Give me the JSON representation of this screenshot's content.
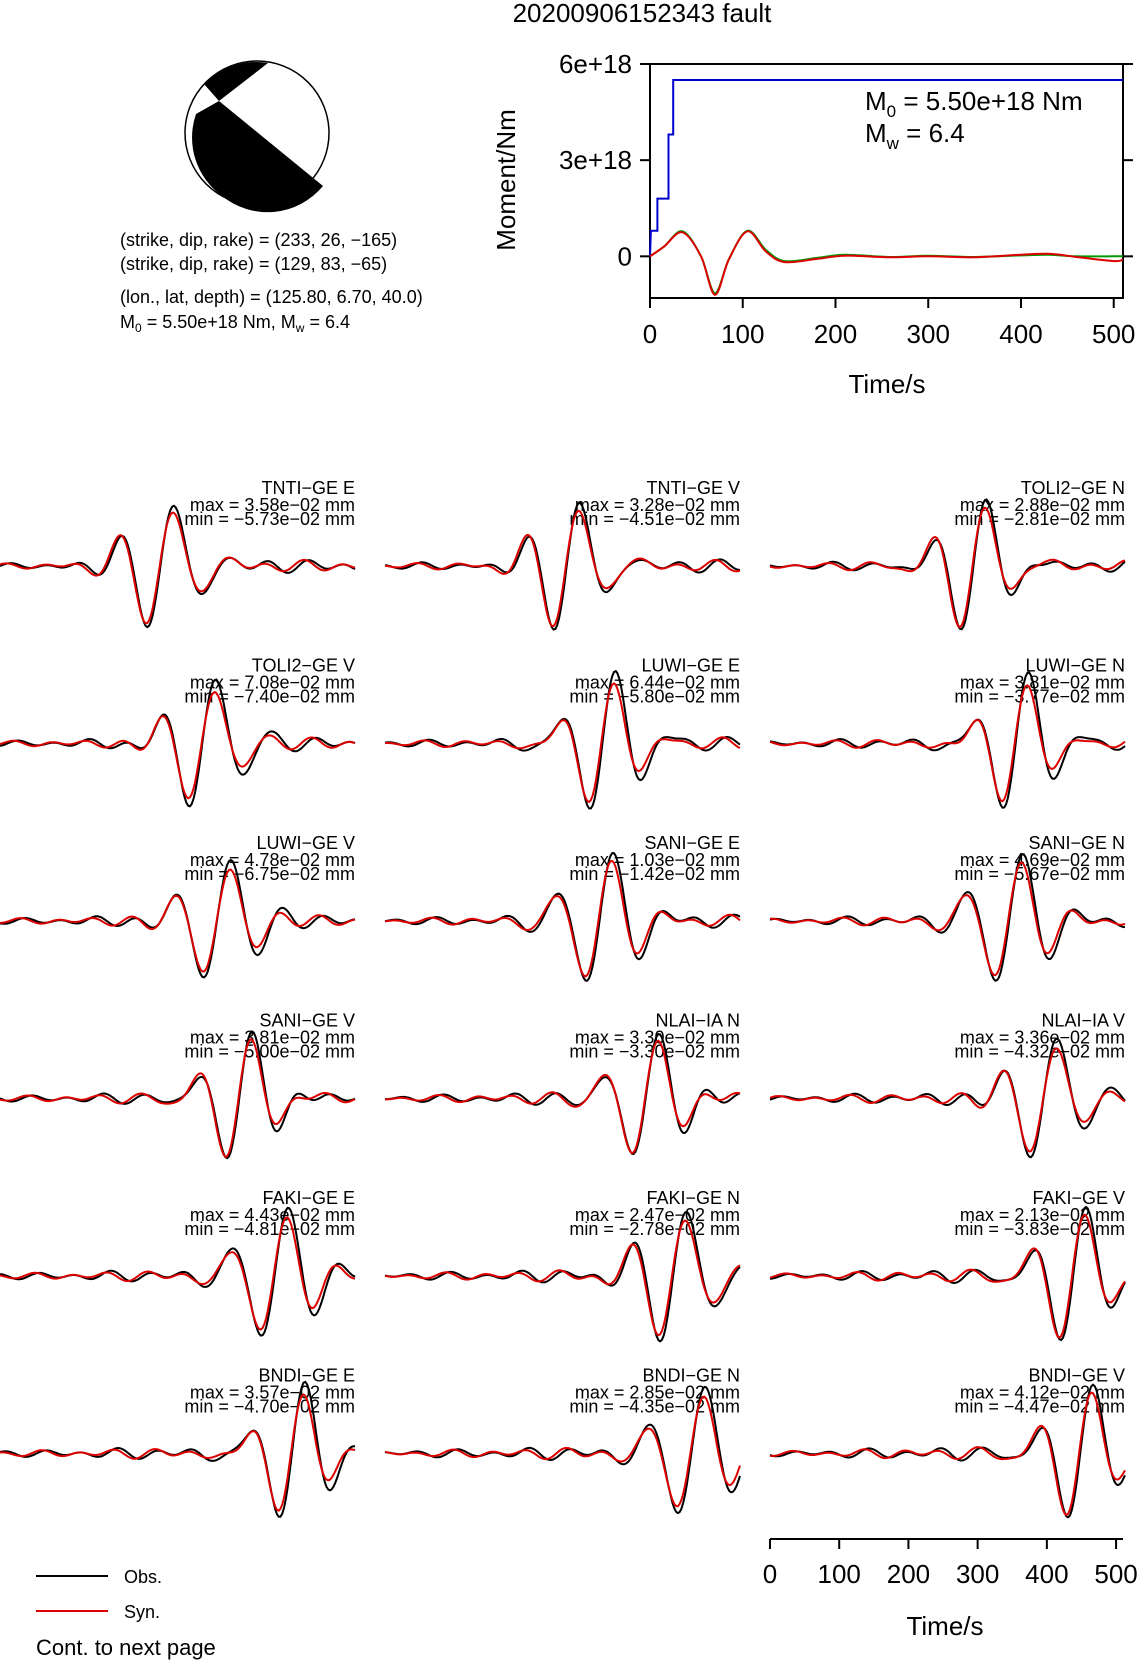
{
  "title": "20200906152343 fault",
  "mechanism": {
    "lines": [
      "(strike, dip, rake) = (233, 26, −165)",
      "(strike, dip, rake) = (129, 83, −65)",
      "(lon., lat, depth) = (125.80, 6.70, 40.0)"
    ],
    "m0_line_prefix": "M",
    "m0_line_sub": "0",
    "m0_line_middle": " = 5.50e+18 Nm, M",
    "m0_line_sub2": "w",
    "m0_line_suffix": " = 6.4"
  },
  "moment_panel": {
    "ylabel": "Moment/Nm",
    "xlabel": "Time/s",
    "m0_prefix": "M",
    "m0_sub": "0",
    "m0_value": " = 5.50e+18 Nm",
    "mw_prefix": "M",
    "mw_sub": "w",
    "mw_value": " = 6.4",
    "yticks": [
      "6e+18",
      "3e+18",
      "0"
    ],
    "xticks": [
      "0",
      "100",
      "200",
      "300",
      "400",
      "500"
    ]
  },
  "chart_data": [
    {
      "type": "line",
      "title": "",
      "xlabel": "Time/s",
      "ylabel": "Moment/Nm",
      "xlim": [
        0,
        510
      ],
      "ylim": [
        -1.3e+18,
        6e+18
      ],
      "series": [
        {
          "color": "#0000cc",
          "x": [
            0,
            1,
            8,
            8,
            20,
            20,
            25,
            25,
            510
          ],
          "y": [
            0,
            8e+17,
            8e+17,
            1.8e+18,
            1.8e+18,
            3.8e+18,
            3.8e+18,
            5.5e+18,
            5.5e+18
          ]
        },
        {
          "color": "#009900",
          "x": [
            0,
            15,
            35,
            55,
            70,
            85,
            105,
            125,
            145,
            180,
            210,
            260,
            300,
            350,
            400,
            430,
            460,
            500,
            510
          ],
          "y": [
            0,
            3e+17,
            7.8e+17,
            0.0,
            -1.15e+18,
            -1e+17,
            8e+17,
            2e+17,
            -1.5e+17,
            -5e+16,
            5e+16,
            -2e+16,
            2e+16,
            -2e+16,
            3e+16,
            5e+16,
            0.0,
            0.0,
            0.0
          ]
        },
        {
          "color": "#dd0000",
          "x": [
            0,
            15,
            35,
            55,
            70,
            85,
            105,
            125,
            145,
            180,
            210,
            260,
            300,
            350,
            400,
            430,
            460,
            500,
            510
          ],
          "y": [
            0,
            3e+17,
            7.5e+17,
            0.0,
            -1.2e+18,
            -1e+17,
            7.8e+17,
            1.5e+17,
            -1.8e+17,
            -8e+16,
            2e+16,
            -3e+16,
            0.0,
            -3e+16,
            5e+16,
            8e+16,
            -2e+16,
            -1.5e+17,
            -1e+17
          ]
        }
      ]
    }
  ],
  "waveforms": [
    {
      "label": "TNTI−GE E",
      "max": "max = 3.58e−02 mm",
      "min": "min = −5.73e−02 mm"
    },
    {
      "label": "TNTI−GE V",
      "max": "max = 3.28e−02 mm",
      "min": "min = −4.51e−02 mm"
    },
    {
      "label": "TOLI2−GE N",
      "max": "max = 2.88e−02 mm",
      "min": "min = −2.81e−02 mm"
    },
    {
      "label": "TOLI2−GE V",
      "max": "max = 7.08e−02 mm",
      "min": "min = −7.40e−02 mm"
    },
    {
      "label": "LUWI−GE E",
      "max": "max = 6.44e−02 mm",
      "min": "min = −5.80e−02 mm"
    },
    {
      "label": "LUWI−GE N",
      "max": "max = 3.81e−02 mm",
      "min": "min = −3.77e−02 mm"
    },
    {
      "label": "LUWI−GE V",
      "max": "max = 4.78e−02 mm",
      "min": "min = −6.75e−02 mm"
    },
    {
      "label": "SANI−GE E",
      "max": "max = 1.03e−02 mm",
      "min": "min = −1.42e−02 mm"
    },
    {
      "label": "SANI−GE N",
      "max": "max = 4.69e−02 mm",
      "min": "min = −5.67e−02 mm"
    },
    {
      "label": "SANI−GE V",
      "max": "max = 3.81e−02 mm",
      "min": "min = −5.00e−02 mm"
    },
    {
      "label": "NLAI−IA N",
      "max": "max = 3.30e−02 mm",
      "min": "min = −3.30e−02 mm"
    },
    {
      "label": "NLAI−IA V",
      "max": "max = 3.36e−02 mm",
      "min": "min = −4.32e−02 mm"
    },
    {
      "label": "FAKI−GE E",
      "max": "max = 4.43e−02 mm",
      "min": "min = −4.81e−02 mm"
    },
    {
      "label": "FAKI−GE N",
      "max": "max = 2.47e−02 mm",
      "min": "min = −2.78e−02 mm"
    },
    {
      "label": "FAKI−GE V",
      "max": "max = 2.13e−02 mm",
      "min": "min = −3.83e−02 mm"
    },
    {
      "label": "BNDI−GE E",
      "max": "max = 3.57e−02 mm",
      "min": "min = −4.70e−02 mm"
    },
    {
      "label": "BNDI−GE N",
      "max": "max = 2.85e−02 mm",
      "min": "min = −4.35e−02 mm"
    },
    {
      "label": "BNDI−GE V",
      "max": "max = 4.12e−02 mm",
      "min": "min = −4.47e−02 mm"
    }
  ],
  "bottom_axis": {
    "xlabel": "Time/s",
    "xticks": [
      "0",
      "100",
      "200",
      "300",
      "400",
      "500"
    ]
  },
  "legend": {
    "obs_label": "Obs.",
    "syn_label": "Syn.",
    "obs_color": "#000000",
    "syn_color": "#dd0000"
  },
  "footer": "Cont. to next page"
}
